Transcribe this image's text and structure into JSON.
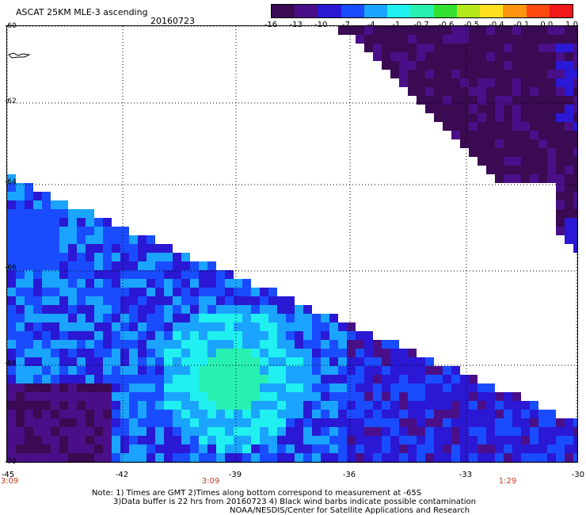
{
  "header": {
    "title": "ASCAT 25KM MLE-3 ascending",
    "date": "20160723"
  },
  "colorbar": {
    "labels": [
      "-16",
      "-13",
      "-10",
      "-7",
      "-4",
      "-1",
      "-0.7",
      "-0.6",
      "-0.5",
      "-0.4",
      "-0.1",
      "0.0",
      "1.0"
    ],
    "colors": [
      "#3a0a52",
      "#4a0f88",
      "#2a18d4",
      "#1a4cff",
      "#1aa4ff",
      "#20f0f0",
      "#28f0b0",
      "#34e030",
      "#b4e818",
      "#ffe020",
      "#ff9410",
      "#ff4a10",
      "#f01818"
    ]
  },
  "map": {
    "lat_labels": [
      "-60",
      "-62",
      "-64",
      "-66",
      "-68",
      "-70"
    ],
    "lon_labels": [
      "-45",
      "-42",
      "-39",
      "-36",
      "-33",
      "-30"
    ],
    "time_labels": [
      "3:09",
      "3:09",
      "1:29"
    ]
  },
  "footer": {
    "note_line1": "Note: 1) Times are GMT 2)Times along bottom correspond to measurement at -65S",
    "note_line2": "3)Data buffer is 22 hrs from 20160723 4) Black wind barbs indicate possible contamination",
    "note_line3": "NOAA/NESDIS/Center for Satellite Applications and Research"
  }
}
